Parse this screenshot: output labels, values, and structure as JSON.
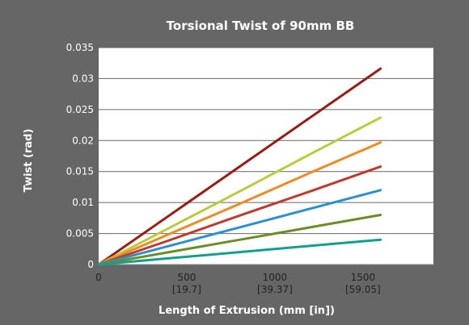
{
  "chart_data": {
    "type": "line",
    "title": "Torsional Twist of 90mm BB",
    "xlabel": "Length of Extrusion (mm [in])",
    "ylabel": "Twist (rad)",
    "xlim": [
      0,
      1900
    ],
    "ylim": [
      0,
      0.035
    ],
    "x_ticks": [
      {
        "value": 0,
        "label": "0",
        "sub": ""
      },
      {
        "value": 500,
        "label": "500",
        "sub": "[19.7]"
      },
      {
        "value": 1000,
        "label": "1000",
        "sub": "[39.37]"
      },
      {
        "value": 1500,
        "label": "1500",
        "sub": "[59.05]"
      }
    ],
    "y_ticks": [
      {
        "value": 0,
        "label": "0"
      },
      {
        "value": 0.005,
        "label": "0.005"
      },
      {
        "value": 0.01,
        "label": "0.01"
      },
      {
        "value": 0.015,
        "label": "0.015"
      },
      {
        "value": 0.02,
        "label": "0.02"
      },
      {
        "value": 0.025,
        "label": "0.025"
      },
      {
        "value": 0.03,
        "label": "0.03"
      },
      {
        "value": 0.035,
        "label": "0.035"
      }
    ],
    "grid": "horizontal",
    "legend": "none",
    "x": [
      0,
      400,
      800,
      1200,
      1600
    ],
    "series": [
      {
        "color": "#9b1a12",
        "values": [
          0,
          0.0079,
          0.0158,
          0.0237,
          0.0316
        ]
      },
      {
        "color": "#b9cc3b",
        "values": [
          0,
          0.0059,
          0.0118,
          0.0178,
          0.0237
        ]
      },
      {
        "color": "#f08a24",
        "values": [
          0,
          0.0049,
          0.0098,
          0.0148,
          0.0197
        ]
      },
      {
        "color": "#c0392b",
        "values": [
          0,
          0.0039,
          0.0079,
          0.0118,
          0.0158
        ]
      },
      {
        "color": "#2b8fd4",
        "values": [
          0,
          0.003,
          0.006,
          0.009,
          0.012
        ]
      },
      {
        "color": "#6b8e23",
        "values": [
          0,
          0.002,
          0.004,
          0.006,
          0.008
        ]
      },
      {
        "color": "#12a08a",
        "values": [
          0,
          0.001,
          0.002,
          0.003,
          0.004
        ]
      }
    ]
  },
  "colors": {
    "background": "#666666",
    "plot_area": "#ffffff",
    "text": "#ffffff",
    "gridline": "#666666"
  }
}
